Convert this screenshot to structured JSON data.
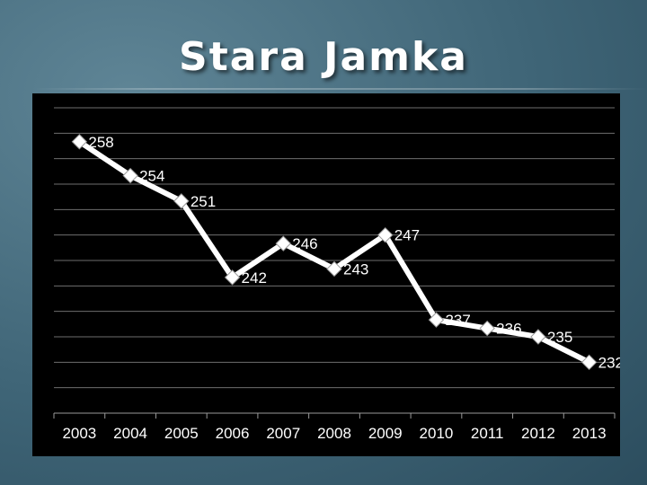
{
  "slide": {
    "title": "Stara Jamka"
  },
  "colors": {
    "background": "#3f6577",
    "plot_background": "#000000",
    "line": "#ffffff",
    "grid": "#6e6e6e",
    "text": "#ffffff"
  },
  "chart_data": {
    "type": "line",
    "title": "",
    "xlabel": "",
    "ylabel": "",
    "categories": [
      "2003",
      "2004",
      "2005",
      "2006",
      "2007",
      "2008",
      "2009",
      "2010",
      "2011",
      "2012",
      "2013"
    ],
    "values": [
      258,
      254,
      251,
      242,
      246,
      243,
      247,
      237,
      236,
      235,
      232
    ],
    "ylim": [
      226,
      262
    ],
    "y_tick_step": 3,
    "grid": true,
    "legend": "none",
    "marker": "diamond"
  }
}
